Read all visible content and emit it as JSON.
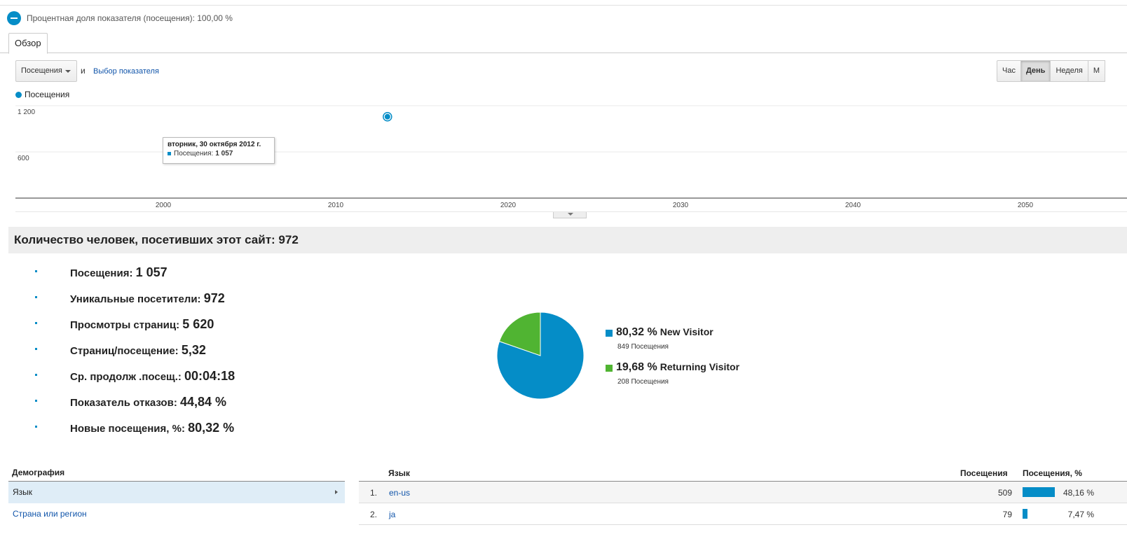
{
  "segment": {
    "label": "Процентная доля показателя (посещения): 100,00 %"
  },
  "tabs": [
    {
      "label": "Обзор"
    }
  ],
  "controls": {
    "metric_select": "Посещения",
    "and_text": "и",
    "choose_metric": "Выбор показателя",
    "periods": [
      "Час",
      "День",
      "Неделя",
      "М"
    ],
    "active_period": "День"
  },
  "legend": {
    "label": "Посещения"
  },
  "chart_data": {
    "type": "line",
    "series": [
      {
        "name": "Посещения",
        "values": [
          1057
        ]
      }
    ],
    "x_ticks": [
      "2000",
      "2010",
      "2020",
      "2030",
      "2040",
      "2050"
    ],
    "y_ticks": [
      "1 200",
      "600"
    ],
    "ylim": [
      0,
      1200
    ],
    "grid": true,
    "point": {
      "year": 2013,
      "value": 1057
    },
    "tooltip": {
      "date": "вторник, 30 октября 2012 г.",
      "series_label": "Посещения:",
      "value": "1 057"
    }
  },
  "summary": {
    "title": "Количество человек, посетивших этот сайт: 972",
    "stats": [
      {
        "label": "Посещения:",
        "value": "1 057"
      },
      {
        "label": "Уникальные посетители:",
        "value": "972"
      },
      {
        "label": "Просмотры страниц:",
        "value": "5 620"
      },
      {
        "label": "Страниц/посещение:",
        "value": "5,32"
      },
      {
        "label": "Ср. продолж .посещ.:",
        "value": "00:04:18"
      },
      {
        "label": "Показатель отказов:",
        "value": "44,84 %"
      },
      {
        "label": "Новые посещения, %:",
        "value": "80,32 %"
      }
    ]
  },
  "pie": {
    "type": "pie",
    "slices": [
      {
        "name": "New Visitor",
        "pct_label": "80,32 %",
        "value": 80.32,
        "sub": "849 Посещения",
        "color": "#058dc7"
      },
      {
        "name": "Returning Visitor",
        "pct_label": "19,68 %",
        "value": 19.68,
        "sub": "208 Посещения",
        "color": "#50b432"
      }
    ]
  },
  "demography": {
    "title": "Демография",
    "items": [
      {
        "label": "Язык",
        "selected": true
      },
      {
        "label": "Страна или регион",
        "selected": false
      }
    ]
  },
  "table": {
    "headers": {
      "lang": "Язык",
      "visits": "Посещения",
      "pct": "Посещения, %"
    },
    "rows": [
      {
        "idx": "1.",
        "lang": "en-us",
        "visits": "509",
        "pct": "48,16 %",
        "share": 48.16
      },
      {
        "idx": "2.",
        "lang": "ja",
        "visits": "79",
        "pct": "7,47 %",
        "share": 7.47
      }
    ]
  }
}
